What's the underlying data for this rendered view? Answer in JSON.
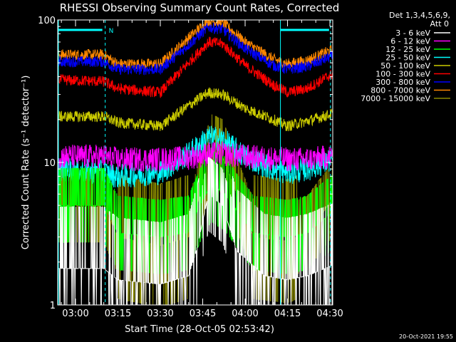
{
  "chart_data": {
    "type": "line",
    "title": "RHESSI Observing Summary Count Rates, Corrected",
    "xlabel": "Start Time (28-Oct-05 02:53:42)",
    "ylabel": "Corrected Count Rate (s⁻¹ detector⁻¹)",
    "y_scale": "log",
    "ylim": [
      1,
      100
    ],
    "y_tick_labels": [
      "1",
      "10",
      "100"
    ],
    "x_range_minutes": [
      173.7,
      271.0
    ],
    "x_tick_labels": [
      "03:00",
      "03:15",
      "03:30",
      "03:45",
      "04:00",
      "04:15",
      "04:30"
    ],
    "x_tick_minutes": [
      180,
      195,
      210,
      225,
      240,
      255,
      270
    ],
    "legend_header": [
      "Det 1,3,4,5,6,9,",
      "Att 0"
    ],
    "legend_placement": "right",
    "timestamp": "20-Oct-2021 19:55",
    "night_marker_label": "N",
    "day_night_boundaries_minutes": [
      173.7,
      190.5,
      252.5,
      270.2
    ],
    "series": [
      {
        "name": "3 - 6 keV",
        "color": "#ffffff",
        "quantized": true,
        "x": [
          174,
          190,
          195,
          210,
          220,
          223,
          227,
          232,
          237,
          247,
          255,
          262,
          271
        ],
        "y": [
          1.8,
          1.8,
          1.5,
          1.4,
          1.6,
          2.5,
          6.0,
          5.0,
          2.4,
          1.6,
          1.5,
          1.6,
          1.9
        ]
      },
      {
        "name": "6 - 12 keV",
        "color": "#ff00ff",
        "x": [
          174,
          190,
          195,
          210,
          220,
          227,
          232,
          240,
          255,
          262,
          271
        ],
        "y": [
          11.0,
          11.0,
          10.5,
          10.5,
          10.8,
          11.5,
          11.5,
          11.0,
          10.5,
          10.5,
          11.0
        ]
      },
      {
        "name": "12 - 25 keV",
        "color": "#00ff00",
        "quantized": true,
        "x": [
          174,
          190,
          195,
          210,
          220,
          224,
          228,
          233,
          237,
          243,
          255,
          262,
          271
        ],
        "y": [
          5.0,
          5.0,
          3.2,
          3.0,
          3.2,
          5.0,
          7.0,
          6.0,
          4.6,
          3.2,
          3.0,
          3.2,
          4.5
        ]
      },
      {
        "name": "25 - 50 keV",
        "color": "#00ffff",
        "x": [
          174,
          190,
          195,
          210,
          220,
          227,
          232,
          240,
          250,
          255,
          262,
          271
        ],
        "y": [
          9.0,
          8.5,
          8.0,
          8.5,
          11.5,
          15.0,
          14.5,
          11.0,
          9.0,
          8.5,
          9.0,
          10.5
        ]
      },
      {
        "name": "50 - 100 keV",
        "color": "#cccc00",
        "x": [
          174,
          190,
          195,
          210,
          220,
          227,
          232,
          240,
          250,
          255,
          262,
          271
        ],
        "y": [
          21.0,
          21.0,
          19.0,
          18.0,
          25.0,
          31.0,
          30.0,
          24.0,
          20.0,
          18.0,
          19.5,
          22.0
        ]
      },
      {
        "name": "100 - 300 keV",
        "color": "#ff0000",
        "x": [
          174,
          190,
          195,
          210,
          220,
          227,
          232,
          240,
          250,
          255,
          262,
          271
        ],
        "y": [
          38.0,
          37.0,
          33.0,
          31.0,
          50.0,
          70.0,
          68.0,
          48.0,
          35.0,
          31.0,
          33.0,
          42.0
        ]
      },
      {
        "name": "300 - 800 keV",
        "color": "#0000ff",
        "x": [
          174,
          190,
          195,
          210,
          220,
          227,
          232,
          240,
          250,
          255,
          262,
          271
        ],
        "y": [
          51.0,
          51.0,
          45.0,
          45.0,
          67.0,
          89.0,
          86.0,
          63.0,
          48.0,
          45.0,
          47.0,
          56.0
        ]
      },
      {
        "name": "800 - 7000 keV",
        "color": "#ff8800",
        "x": [
          174,
          190,
          195,
          210,
          220,
          227,
          232,
          240,
          250,
          255,
          262,
          271
        ],
        "y": [
          57.0,
          57.0,
          49.0,
          49.0,
          75.0,
          99.0,
          96.0,
          70.0,
          53.0,
          49.0,
          52.0,
          62.0
        ]
      },
      {
        "name": "7000 - 15000 keV",
        "color": "#888800",
        "quantized": true,
        "x": [
          174,
          190,
          195,
          210,
          220,
          224,
          228,
          232,
          237,
          243,
          255,
          262,
          271
        ],
        "y": [
          5.0,
          5.0,
          3.0,
          2.6,
          3.0,
          6.0,
          12.0,
          11.0,
          6.0,
          3.0,
          2.8,
          3.2,
          5.5
        ]
      }
    ]
  }
}
